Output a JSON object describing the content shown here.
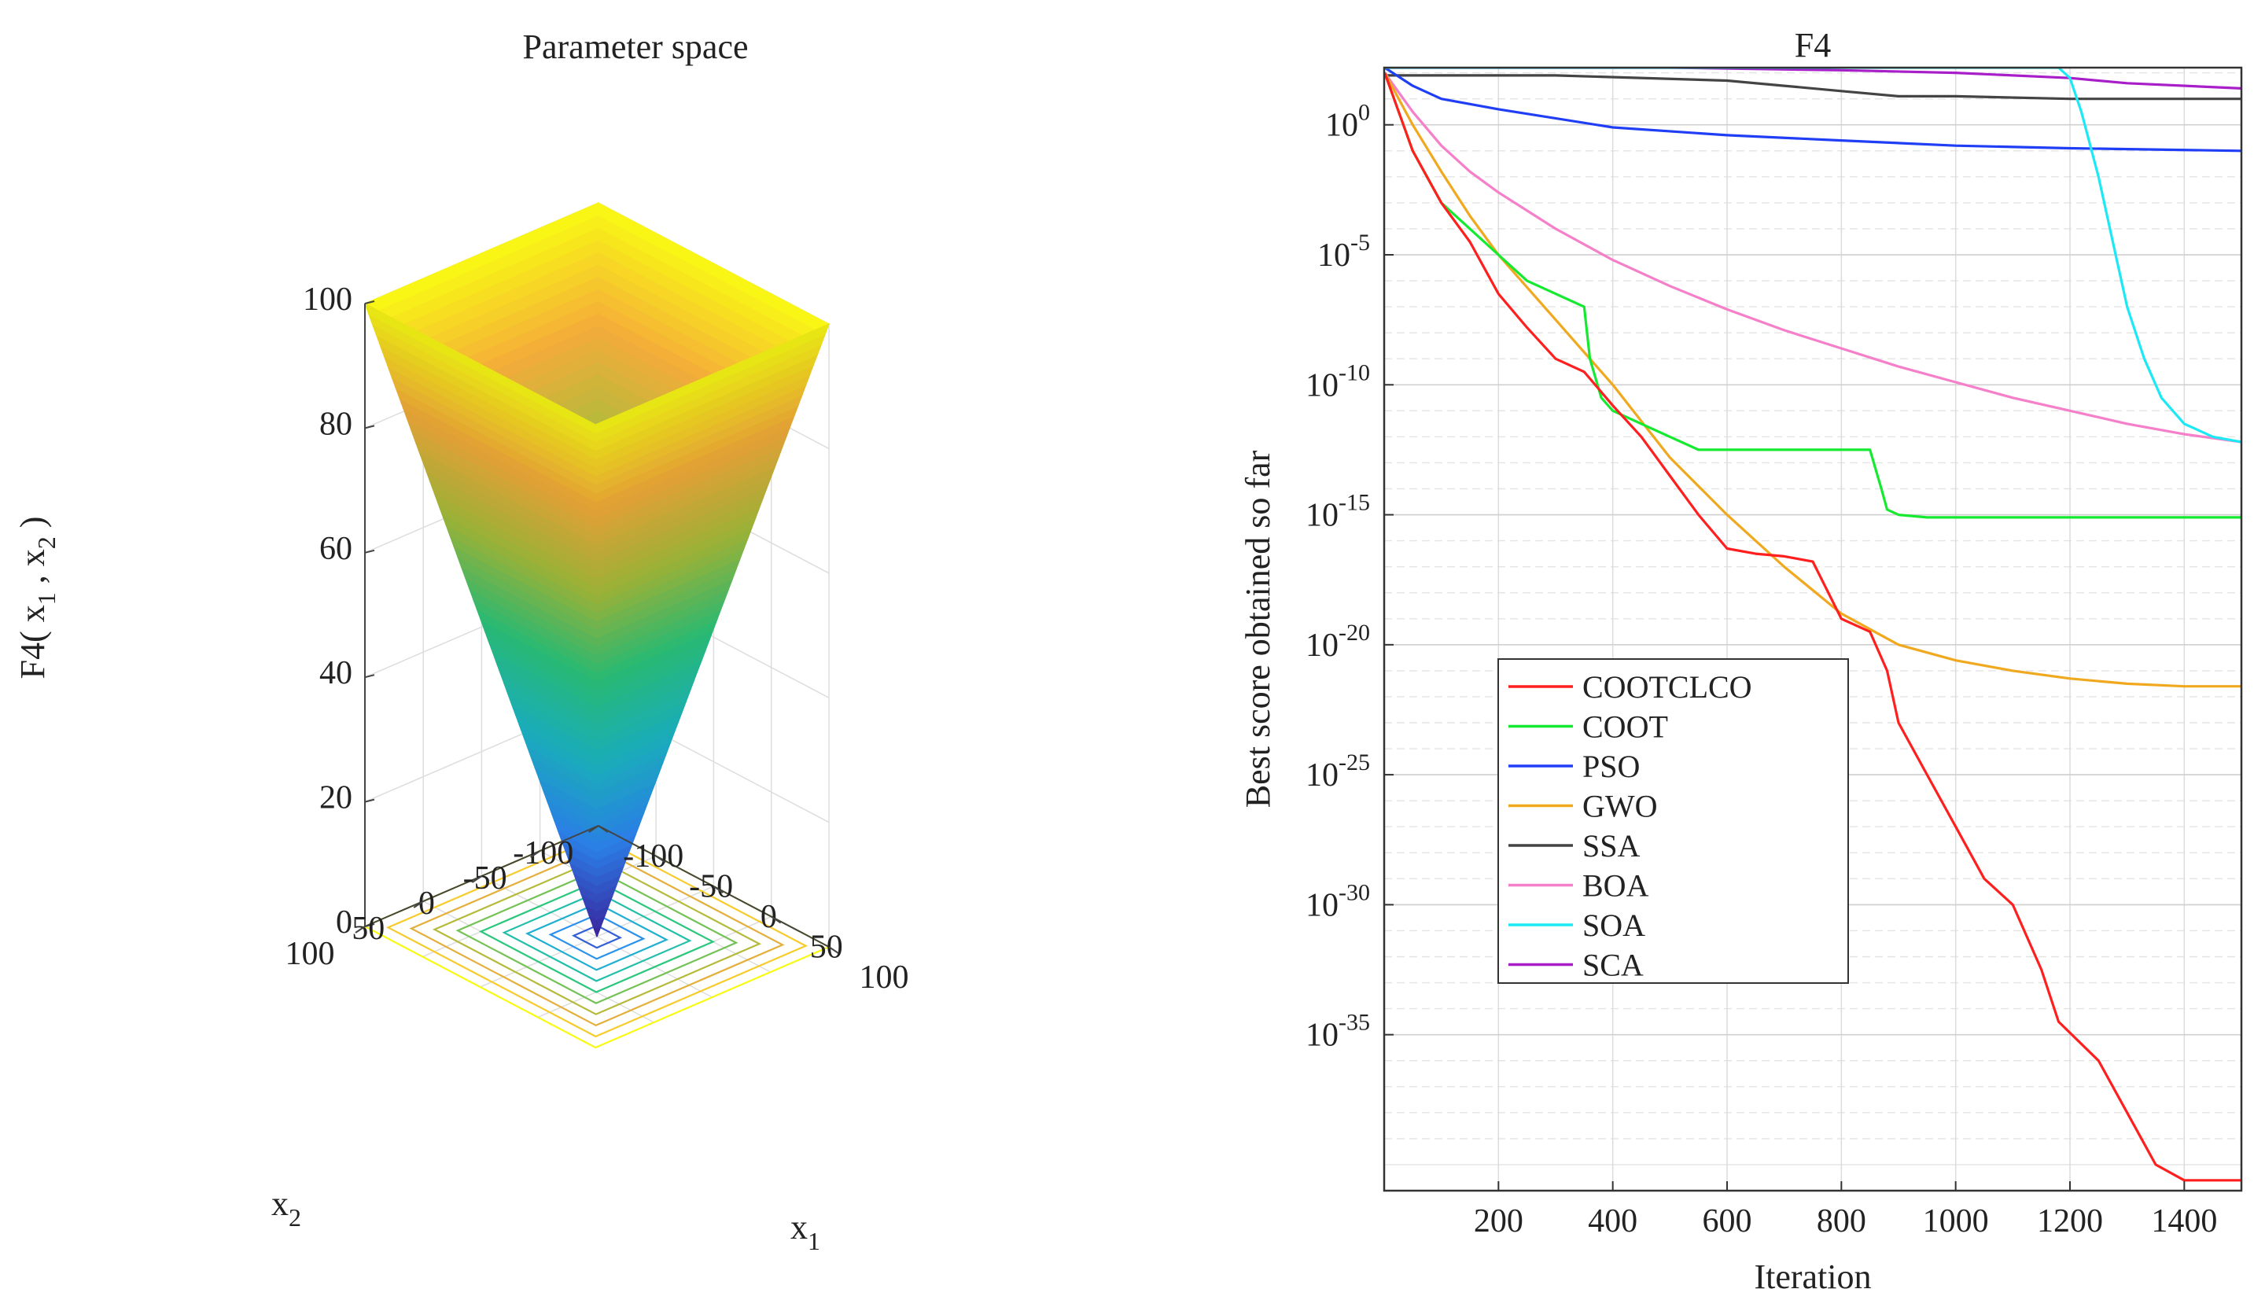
{
  "chart_data": [
    {
      "type": "surface3d",
      "title": "Parameter space",
      "function": "F4(x1,x2) = max(|x1|,|x2|)",
      "zlabel": {
        "main": "F4( x",
        "s1": "1",
        "mid": " , x",
        "s2": "2",
        "end": " )"
      },
      "xlabel": {
        "main": "x",
        "sub": "1"
      },
      "ylabel": {
        "main": "x",
        "sub": "2"
      },
      "zticks": [
        "0",
        "20",
        "40",
        "60",
        "80",
        "100"
      ],
      "zlim": [
        0,
        100
      ],
      "x1ticks": [
        "-100",
        "-50",
        "0",
        "50",
        "100"
      ],
      "x2ticks": [
        "-100",
        "-50",
        "0",
        "50",
        "100"
      ],
      "xlim": [
        -100,
        100
      ],
      "ylim": [
        -100,
        100
      ],
      "contour_levels": [
        10,
        20,
        30,
        40,
        50,
        60,
        70,
        80,
        90,
        100
      ],
      "colormap": [
        "#3e26a8",
        "#2e87f7",
        "#1bb9c8",
        "#2bc77c",
        "#a5be3b",
        "#f4ab3a",
        "#f9fa14"
      ]
    },
    {
      "type": "line",
      "title": "F4",
      "xlabel": "Iteration",
      "ylabel": "Best score obtained so far",
      "yscale": "log",
      "xlim": [
        0,
        1500
      ],
      "ylim_exponent": [
        -41,
        2.2
      ],
      "xticks": [
        "200",
        "400",
        "600",
        "800",
        "1000",
        "1200",
        "1400"
      ],
      "ytick_base": "10",
      "ytick_exponents": [
        "0",
        "-5",
        "-10",
        "-15",
        "-20",
        "-25",
        "-30",
        "-35"
      ],
      "series": [
        {
          "name": "COOTCLCO",
          "color": "#ff1f1f",
          "iterations": [
            1,
            50,
            100,
            150,
            200,
            250,
            300,
            350,
            400,
            450,
            500,
            550,
            600,
            650,
            700,
            750,
            800,
            850,
            880,
            900,
            950,
            1000,
            1050,
            1100,
            1150,
            1180,
            1250,
            1300,
            1350,
            1400,
            1500
          ],
          "log10_values": [
            2,
            -1,
            -3,
            -4.5,
            -6.5,
            -7.8,
            -9,
            -9.5,
            -10.8,
            -12,
            -13.5,
            -15,
            -16.3,
            -16.5,
            -16.6,
            -16.8,
            -19,
            -19.5,
            -21,
            -23,
            -25,
            -27,
            -29,
            -30,
            -32.5,
            -34.5,
            -36,
            -38,
            -40,
            -40.6,
            -40.6
          ]
        },
        {
          "name": "COOT",
          "color": "#15ea30",
          "iterations": [
            1,
            50,
            100,
            150,
            200,
            250,
            300,
            350,
            360,
            380,
            400,
            450,
            500,
            550,
            600,
            700,
            800,
            850,
            870,
            880,
            900,
            950,
            1000,
            1500
          ],
          "log10_values": [
            2,
            -1,
            -3,
            -4,
            -5,
            -6,
            -6.5,
            -7,
            -9,
            -10.5,
            -11,
            -11.5,
            -12,
            -12.5,
            -12.5,
            -12.5,
            -12.5,
            -12.5,
            -14,
            -14.8,
            -15,
            -15.1,
            -15.1,
            -15.1
          ]
        },
        {
          "name": "PSO",
          "color": "#1f3ef5",
          "iterations": [
            1,
            50,
            100,
            200,
            400,
            600,
            800,
            1000,
            1200,
            1500
          ],
          "log10_values": [
            2.2,
            1.5,
            1.0,
            0.6,
            -0.1,
            -0.4,
            -0.6,
            -0.8,
            -0.9,
            -1.0
          ]
        },
        {
          "name": "GWO",
          "color": "#f0a91f",
          "iterations": [
            1,
            50,
            100,
            150,
            200,
            300,
            400,
            500,
            600,
            700,
            800,
            900,
            1000,
            1100,
            1200,
            1300,
            1400,
            1500
          ],
          "log10_values": [
            2,
            0,
            -1.8,
            -3.5,
            -5,
            -7.5,
            -10,
            -12.8,
            -15,
            -17,
            -18.8,
            -20,
            -20.6,
            -21,
            -21.3,
            -21.5,
            -21.6,
            -21.6
          ]
        },
        {
          "name": "SSA",
          "color": "#444444",
          "iterations": [
            1,
            100,
            300,
            600,
            700,
            800,
            900,
            1000,
            1200,
            1500
          ],
          "log10_values": [
            1.9,
            1.9,
            1.9,
            1.7,
            1.5,
            1.3,
            1.1,
            1.1,
            1.0,
            1.0
          ]
        },
        {
          "name": "BOA",
          "color": "#f57fc9",
          "iterations": [
            1,
            50,
            100,
            150,
            200,
            300,
            400,
            500,
            600,
            700,
            800,
            900,
            1000,
            1100,
            1200,
            1300,
            1400,
            1500
          ],
          "log10_values": [
            2,
            0.5,
            -0.8,
            -1.8,
            -2.6,
            -4,
            -5.2,
            -6.2,
            -7.1,
            -7.9,
            -8.6,
            -9.3,
            -9.9,
            -10.5,
            -11,
            -11.5,
            -11.9,
            -12.2
          ]
        },
        {
          "name": "SOA",
          "color": "#1de8f5",
          "iterations": [
            1,
            1000,
            1180,
            1200,
            1220,
            1250,
            1280,
            1300,
            1330,
            1360,
            1400,
            1450,
            1500
          ],
          "log10_values": [
            2.2,
            2.2,
            2.2,
            1.8,
            0.5,
            -2,
            -5,
            -7,
            -9,
            -10.5,
            -11.5,
            -12,
            -12.2
          ]
        },
        {
          "name": "SCA",
          "color": "#a81fc9",
          "iterations": [
            1,
            100,
            500,
            800,
            1000,
            1200,
            1300,
            1500
          ],
          "log10_values": [
            2.2,
            2.2,
            2.2,
            2.1,
            2.0,
            1.8,
            1.6,
            1.4
          ]
        }
      ]
    }
  ]
}
